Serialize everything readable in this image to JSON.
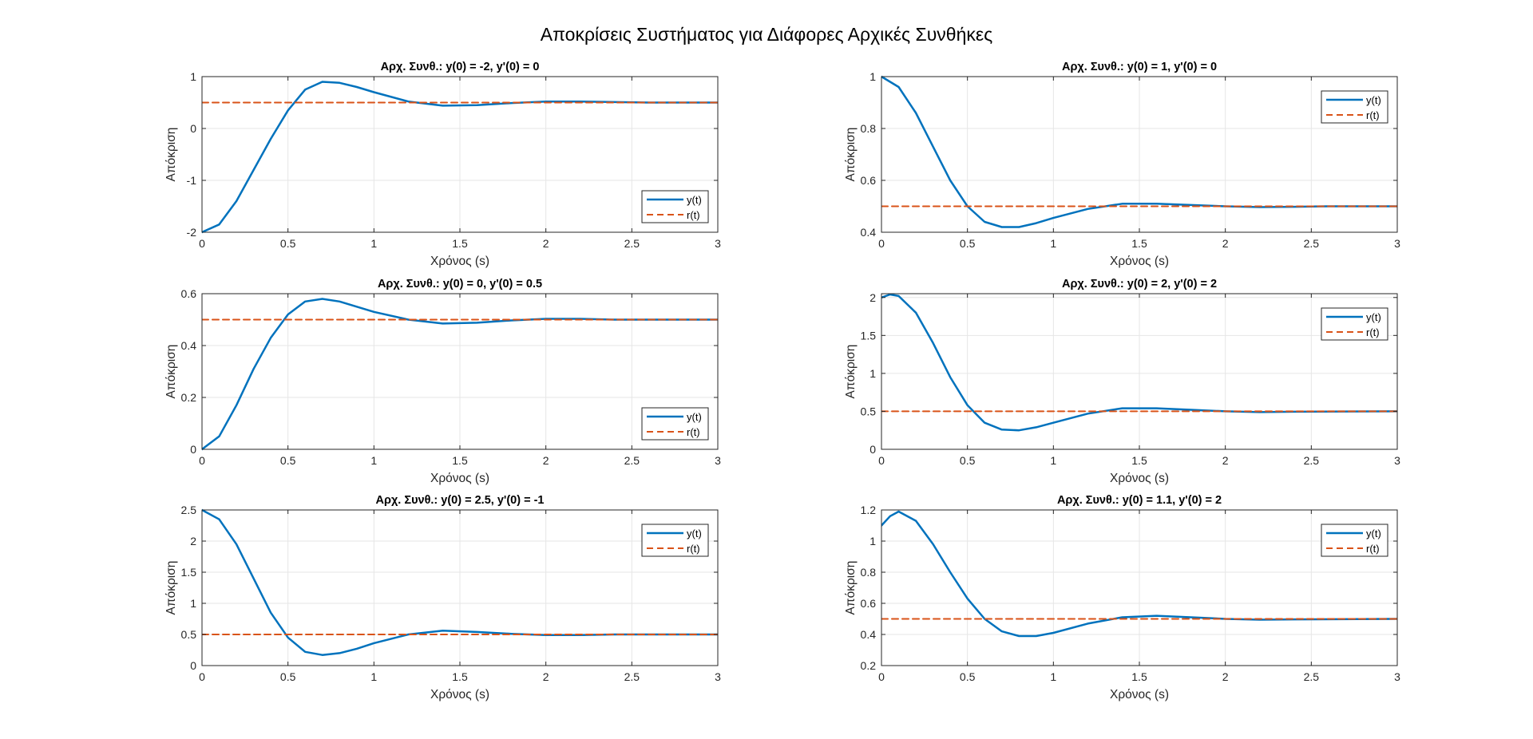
{
  "figure": {
    "suptitle": "Αποκρίσεις Συστήματος για Διάφορες Αρχικές Συνθήκες"
  },
  "colors": {
    "y": "#0072BD",
    "r": "#D95319",
    "grid": "#e6e6e6",
    "axis": "#262626"
  },
  "chart_data": [
    {
      "type": "line",
      "title": "Αρχ. Συνθ.: y(0) = -2, y'(0) = 0",
      "xlabel": "Χρόνος (s)",
      "ylabel": "Απόκριση",
      "xlim": [
        0,
        3
      ],
      "ylim": [
        -2,
        1
      ],
      "xticks": [
        "0",
        "0.5",
        "1",
        "1.5",
        "2",
        "2.5",
        "3"
      ],
      "yticks": [
        "-2",
        "-1",
        "0",
        "1"
      ],
      "grid": true,
      "legend_position": "bottom-right",
      "series": [
        {
          "name": "y(t)",
          "style": "solid",
          "x": [
            0,
            0.1,
            0.2,
            0.3,
            0.4,
            0.5,
            0.6,
            0.7,
            0.8,
            0.9,
            1.0,
            1.2,
            1.4,
            1.6,
            1.8,
            2.0,
            2.2,
            2.4,
            2.6,
            3.0
          ],
          "y": [
            -2,
            -1.85,
            -1.4,
            -0.8,
            -0.2,
            0.35,
            0.75,
            0.9,
            0.88,
            0.8,
            0.7,
            0.52,
            0.44,
            0.45,
            0.49,
            0.52,
            0.52,
            0.51,
            0.5,
            0.5
          ]
        },
        {
          "name": "r(t)",
          "style": "dashed",
          "x": [
            0,
            3
          ],
          "y": [
            0.5,
            0.5
          ]
        }
      ]
    },
    {
      "type": "line",
      "title": "Αρχ. Συνθ.: y(0) = 1, y'(0) = 0",
      "xlabel": "Χρόνος (s)",
      "ylabel": "Απόκριση",
      "xlim": [
        0,
        3
      ],
      "ylim": [
        0.4,
        1
      ],
      "xticks": [
        "0",
        "0.5",
        "1",
        "1.5",
        "2",
        "2.5",
        "3"
      ],
      "yticks": [
        "0.4",
        "0.6",
        "0.8",
        "1"
      ],
      "grid": true,
      "legend_position": "top-right",
      "series": [
        {
          "name": "y(t)",
          "style": "solid",
          "x": [
            0,
            0.1,
            0.2,
            0.3,
            0.4,
            0.5,
            0.6,
            0.7,
            0.8,
            0.9,
            1.0,
            1.2,
            1.4,
            1.6,
            1.8,
            2.0,
            2.2,
            2.4,
            2.6,
            3.0
          ],
          "y": [
            1,
            0.96,
            0.86,
            0.73,
            0.6,
            0.5,
            0.44,
            0.42,
            0.42,
            0.435,
            0.455,
            0.49,
            0.51,
            0.51,
            0.505,
            0.5,
            0.497,
            0.498,
            0.5,
            0.5
          ]
        },
        {
          "name": "r(t)",
          "style": "dashed",
          "x": [
            0,
            3
          ],
          "y": [
            0.5,
            0.5
          ]
        }
      ]
    },
    {
      "type": "line",
      "title": "Αρχ. Συνθ.: y(0) = 0, y'(0) = 0.5",
      "xlabel": "Χρόνος (s)",
      "ylabel": "Απόκριση",
      "xlim": [
        0,
        3
      ],
      "ylim": [
        0,
        0.6
      ],
      "xticks": [
        "0",
        "0.5",
        "1",
        "1.5",
        "2",
        "2.5",
        "3"
      ],
      "yticks": [
        "0",
        "0.2",
        "0.4",
        "0.6"
      ],
      "grid": true,
      "legend_position": "bottom-right",
      "series": [
        {
          "name": "y(t)",
          "style": "solid",
          "x": [
            0,
            0.1,
            0.2,
            0.3,
            0.4,
            0.5,
            0.6,
            0.7,
            0.8,
            0.9,
            1.0,
            1.2,
            1.4,
            1.6,
            1.8,
            2.0,
            2.2,
            2.4,
            2.6,
            3.0
          ],
          "y": [
            0,
            0.05,
            0.17,
            0.31,
            0.43,
            0.52,
            0.57,
            0.58,
            0.57,
            0.55,
            0.53,
            0.5,
            0.485,
            0.488,
            0.497,
            0.503,
            0.503,
            0.5,
            0.5,
            0.5
          ]
        },
        {
          "name": "r(t)",
          "style": "dashed",
          "x": [
            0,
            3
          ],
          "y": [
            0.5,
            0.5
          ]
        }
      ]
    },
    {
      "type": "line",
      "title": "Αρχ. Συνθ.: y(0) = 2, y'(0) = 2",
      "xlabel": "Χρόνος (s)",
      "ylabel": "Απόκριση",
      "xlim": [
        0,
        3
      ],
      "ylim": [
        0,
        2.05
      ],
      "xticks": [
        "0",
        "0.5",
        "1",
        "1.5",
        "2",
        "2.5",
        "3"
      ],
      "yticks": [
        "0",
        "0.5",
        "1",
        "1.5",
        "2"
      ],
      "ytick_values": [
        0,
        0.5,
        1,
        1.5,
        2
      ],
      "grid": true,
      "legend_position": "top-right",
      "series": [
        {
          "name": "y(t)",
          "style": "solid",
          "x": [
            0,
            0.05,
            0.1,
            0.2,
            0.3,
            0.4,
            0.5,
            0.6,
            0.7,
            0.8,
            0.9,
            1.0,
            1.2,
            1.4,
            1.6,
            1.8,
            2.0,
            2.2,
            2.4,
            3.0
          ],
          "y": [
            2,
            2.04,
            2.02,
            1.8,
            1.4,
            0.95,
            0.58,
            0.35,
            0.26,
            0.25,
            0.29,
            0.35,
            0.47,
            0.54,
            0.54,
            0.52,
            0.5,
            0.49,
            0.495,
            0.5
          ]
        },
        {
          "name": "r(t)",
          "style": "dashed",
          "x": [
            0,
            3
          ],
          "y": [
            0.5,
            0.5
          ]
        }
      ]
    },
    {
      "type": "line",
      "title": "Αρχ. Συνθ.: y(0) = 2.5, y'(0) = -1",
      "xlabel": "Χρόνος (s)",
      "ylabel": "Απόκριση",
      "xlim": [
        0,
        3
      ],
      "ylim": [
        0,
        2.5
      ],
      "xticks": [
        "0",
        "0.5",
        "1",
        "1.5",
        "2",
        "2.5",
        "3"
      ],
      "yticks": [
        "0",
        "0.5",
        "1",
        "1.5",
        "2",
        "2.5"
      ],
      "grid": true,
      "legend_position": "top-right",
      "series": [
        {
          "name": "y(t)",
          "style": "solid",
          "x": [
            0,
            0.1,
            0.2,
            0.3,
            0.4,
            0.5,
            0.6,
            0.7,
            0.8,
            0.9,
            1.0,
            1.2,
            1.4,
            1.6,
            1.8,
            2.0,
            2.2,
            2.4,
            2.6,
            3.0
          ],
          "y": [
            2.5,
            2.35,
            1.95,
            1.4,
            0.85,
            0.45,
            0.22,
            0.17,
            0.2,
            0.27,
            0.36,
            0.5,
            0.56,
            0.54,
            0.51,
            0.49,
            0.49,
            0.5,
            0.5,
            0.5
          ]
        },
        {
          "name": "r(t)",
          "style": "dashed",
          "x": [
            0,
            3
          ],
          "y": [
            0.5,
            0.5
          ]
        }
      ]
    },
    {
      "type": "line",
      "title": "Αρχ. Συνθ.: y(0) = 1.1, y'(0) = 2",
      "xlabel": "Χρόνος (s)",
      "ylabel": "Απόκριση",
      "xlim": [
        0,
        3
      ],
      "ylim": [
        0.2,
        1.2
      ],
      "xticks": [
        "0",
        "0.5",
        "1",
        "1.5",
        "2",
        "2.5",
        "3"
      ],
      "yticks": [
        "0.2",
        "0.4",
        "0.6",
        "0.8",
        "1",
        "1.2"
      ],
      "grid": true,
      "legend_position": "top-right",
      "series": [
        {
          "name": "y(t)",
          "style": "solid",
          "x": [
            0,
            0.05,
            0.1,
            0.2,
            0.3,
            0.4,
            0.5,
            0.6,
            0.7,
            0.8,
            0.9,
            1.0,
            1.2,
            1.4,
            1.6,
            1.8,
            2.0,
            2.2,
            2.4,
            3.0
          ],
          "y": [
            1.1,
            1.16,
            1.19,
            1.13,
            0.98,
            0.8,
            0.63,
            0.5,
            0.42,
            0.39,
            0.39,
            0.41,
            0.47,
            0.51,
            0.52,
            0.51,
            0.5,
            0.495,
            0.497,
            0.5
          ]
        },
        {
          "name": "r(t)",
          "style": "dashed",
          "x": [
            0,
            3
          ],
          "y": [
            0.5,
            0.5
          ]
        }
      ]
    }
  ]
}
